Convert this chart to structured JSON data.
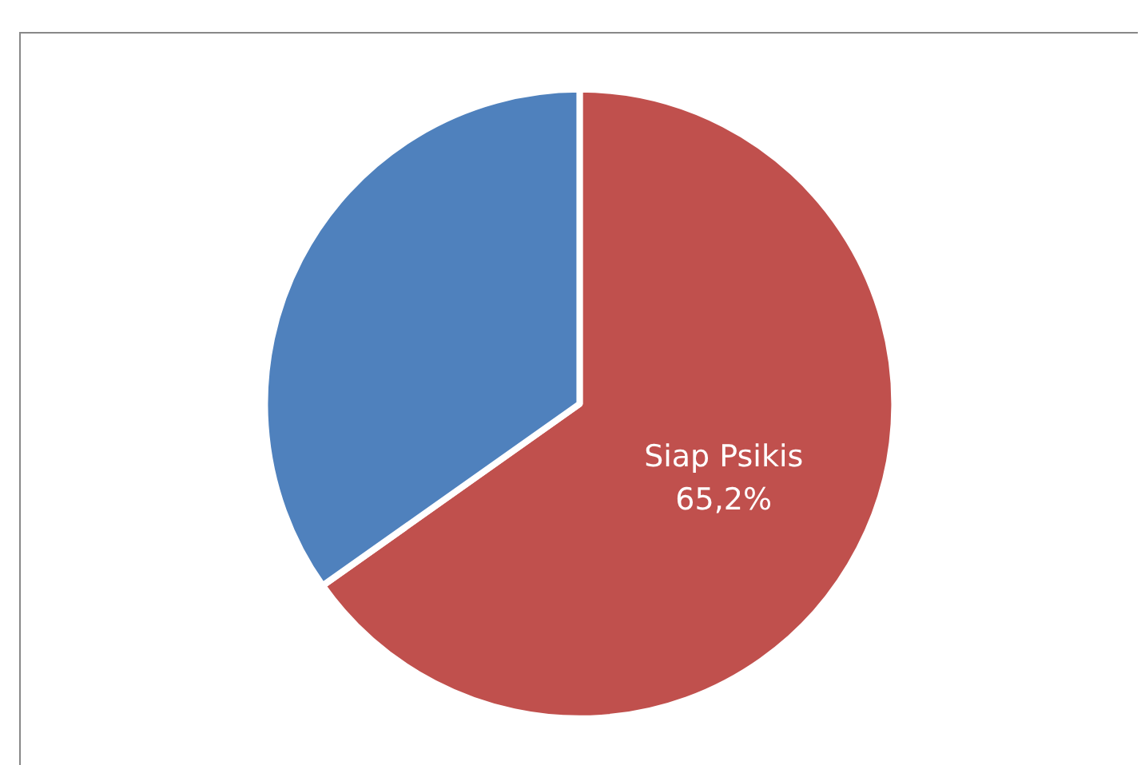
{
  "chart_data": {
    "type": "pie",
    "categories": [
      "Siap Psikis",
      null
    ],
    "values": [
      65.2,
      34.8
    ],
    "colors": [
      "#c0504d",
      "#4f81bd"
    ],
    "value_labels": [
      "65,2%",
      null
    ]
  }
}
